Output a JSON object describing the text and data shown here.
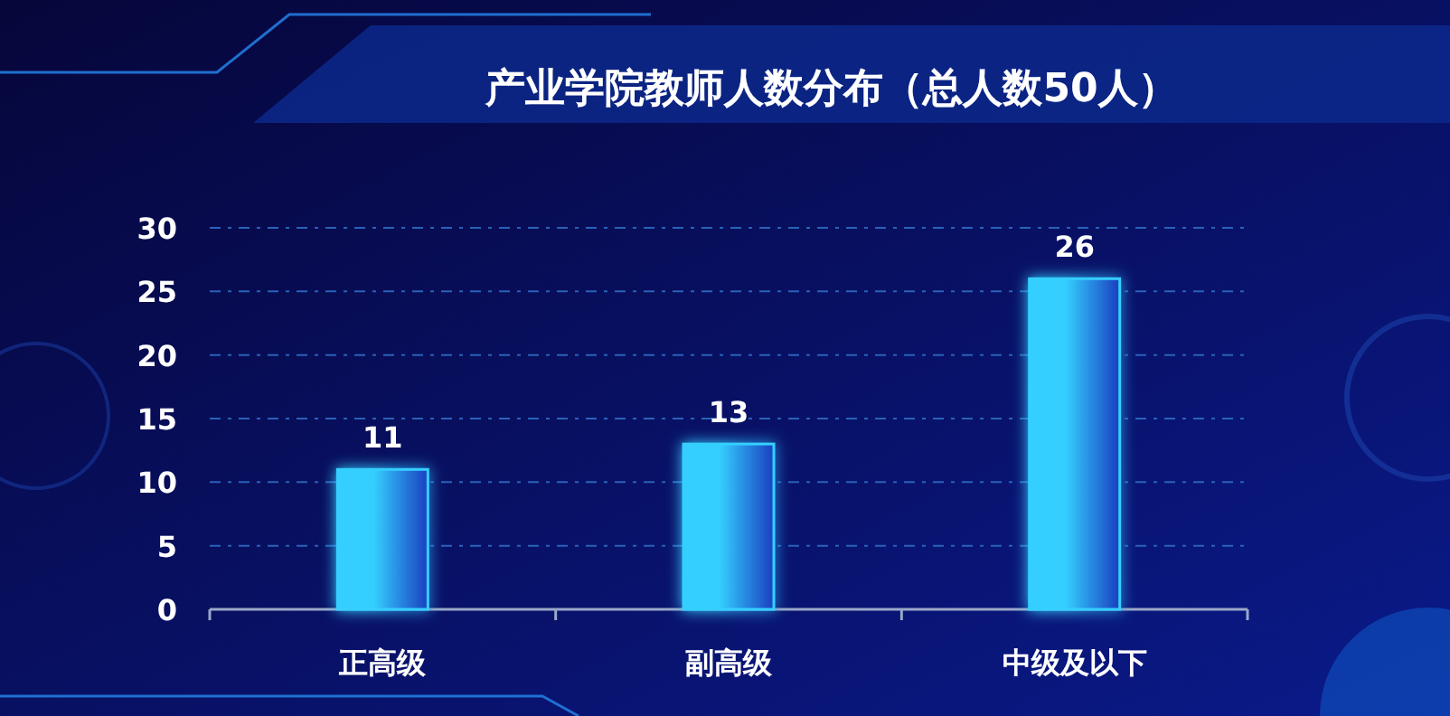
{
  "chart_data": {
    "type": "bar",
    "title": "产业学院教师人数分布（总人数50人）",
    "categories": [
      "正高级",
      "副高级",
      "中级及以下"
    ],
    "values": [
      11,
      13,
      26
    ],
    "color": "#34cfff",
    "ylim": [
      0,
      30
    ],
    "yticks": [
      0,
      5,
      10,
      15,
      20,
      25,
      30
    ],
    "grid": "y",
    "data_labels": true
  }
}
